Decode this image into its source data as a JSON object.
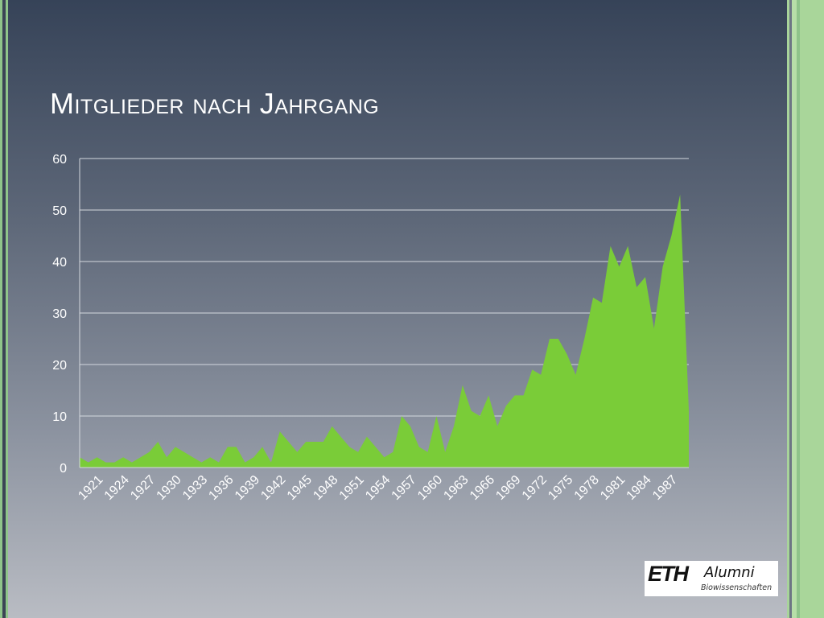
{
  "slide": {
    "title": "Mitglieder nach Jahrgang"
  },
  "logo": {
    "name": "ETH",
    "text": "Alumni",
    "subtitle": "Biowissenschaften"
  },
  "colors": {
    "area": "#7acc38",
    "grid": "#d4d8de",
    "text": "#ffffff",
    "accent_stripe": "#9fd08a"
  },
  "chart_data": {
    "type": "area",
    "title": "",
    "xlabel": "",
    "ylabel": "",
    "ylim": [
      0,
      60
    ],
    "yticks": [
      0,
      10,
      20,
      30,
      40,
      50,
      60
    ],
    "grid": true,
    "legend": "none",
    "x": [
      1919,
      1920,
      1921,
      1922,
      1923,
      1924,
      1925,
      1926,
      1927,
      1928,
      1929,
      1930,
      1931,
      1932,
      1933,
      1934,
      1935,
      1936,
      1937,
      1938,
      1939,
      1940,
      1941,
      1942,
      1943,
      1944,
      1945,
      1946,
      1947,
      1948,
      1949,
      1950,
      1951,
      1952,
      1953,
      1954,
      1955,
      1956,
      1957,
      1958,
      1959,
      1960,
      1961,
      1962,
      1963,
      1964,
      1965,
      1966,
      1967,
      1968,
      1969,
      1970,
      1971,
      1972,
      1973,
      1974,
      1975,
      1976,
      1977,
      1978,
      1979,
      1980,
      1981,
      1982,
      1983,
      1984,
      1985,
      1986,
      1987,
      1988,
      1989
    ],
    "x_tick_labels": [
      "1921",
      "1924",
      "1927",
      "1930",
      "1933",
      "1936",
      "1939",
      "1942",
      "1945",
      "1948",
      "1951",
      "1954",
      "1957",
      "1960",
      "1963",
      "1966",
      "1969",
      "1972",
      "1975",
      "1978",
      "1981",
      "1984",
      "1987"
    ],
    "series": [
      {
        "values": [
          2,
          1,
          2,
          1,
          1,
          2,
          1,
          2,
          3,
          5,
          2,
          4,
          3,
          2,
          1,
          2,
          1,
          4,
          4,
          1,
          2,
          4,
          1,
          7,
          5,
          3,
          5,
          5,
          5,
          8,
          6,
          4,
          3,
          6,
          4,
          2,
          3,
          10,
          8,
          4,
          3,
          10,
          3,
          8,
          16,
          11,
          10,
          14,
          8,
          12,
          14,
          14,
          19,
          18,
          25,
          25,
          22,
          18,
          25,
          33,
          32,
          43,
          39,
          43,
          35,
          37,
          27,
          39,
          45,
          53,
          11
        ]
      }
    ]
  }
}
